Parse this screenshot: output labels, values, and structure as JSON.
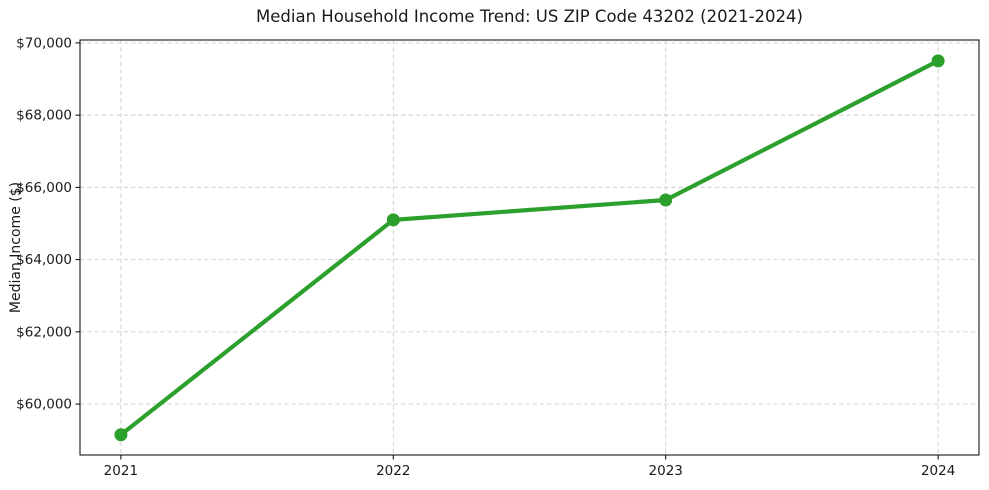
{
  "chart_data": {
    "type": "line",
    "title": "Median Household Income Trend: US ZIP Code 43202 (2021-2024)",
    "xlabel": "",
    "ylabel": "Median Income ($)",
    "x": [
      2021,
      2022,
      2023,
      2024
    ],
    "values": [
      59150,
      65100,
      65650,
      69500
    ],
    "xticks": [
      2021,
      2022,
      2023,
      2024
    ],
    "xtick_labels": [
      "2021",
      "2022",
      "2023",
      "2024"
    ],
    "yticks": [
      60000,
      62000,
      64000,
      66000,
      68000,
      70000
    ],
    "ytick_labels": [
      "$60,000",
      "$62,000",
      "$64,000",
      "$66,000",
      "$68,000",
      "$70,000"
    ],
    "xlim": [
      2020.85,
      2024.15
    ],
    "ylim": [
      58590,
      70080
    ],
    "grid": true,
    "grid_style": "dashed",
    "legend": "none",
    "colors": {
      "line": "#2ca02c",
      "marker": "#2ca02c",
      "grid": "#cdcdcd",
      "spine": "#000000",
      "text": "#1a1a1a",
      "background": "#ffffff"
    },
    "marker": "circle"
  }
}
